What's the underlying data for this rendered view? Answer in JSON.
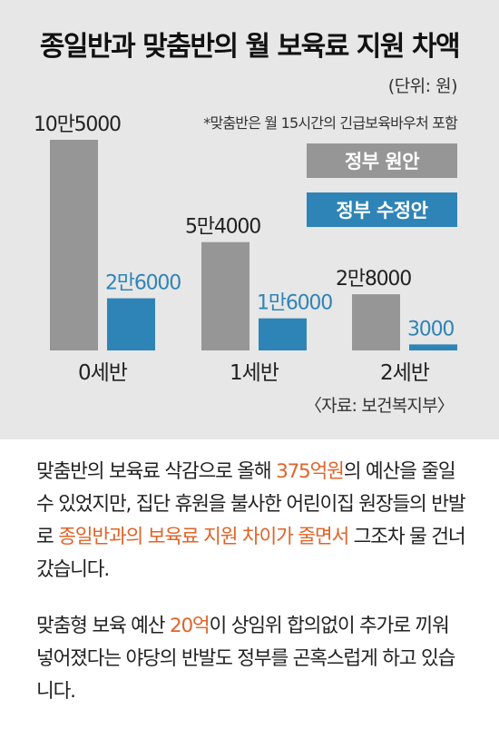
{
  "chart_data": {
    "type": "bar",
    "title": "종일반과 맞춤반의 월 보육료 지원 차액",
    "unit_label": "(단위: 원)",
    "note": "*맞춤반은 월 15시간의  긴급보육바우처 포함",
    "source": "〈자료: 보건복지부〉",
    "categories": [
      "0세반",
      "1세반",
      "2세반"
    ],
    "series": [
      {
        "name": "정부 원안",
        "color": "#969696",
        "label_color": "#222222",
        "values": [
          105000,
          54000,
          28000
        ],
        "labels": [
          "10만5000",
          "5만4000",
          "2만8000"
        ]
      },
      {
        "name": "정부 수정안",
        "color": "#2f84b7",
        "label_color": "#2f84b7",
        "values": [
          26000,
          16000,
          3000
        ],
        "labels": [
          "2만6000",
          "1만6000",
          "3000"
        ]
      }
    ],
    "ylim": [
      0,
      105000
    ],
    "grid": false,
    "legend_position": "top-right"
  },
  "paragraphs": {
    "p1": {
      "a": "맞춤반의 보육료 삭감으로 올해 ",
      "b": "375억원",
      "c": "의 예산을 줄일 수 있었지만, 집단 휴원을 불사한 어린이집 원장들의 반발로 ",
      "d": "종일반과의 보육료 지원 차이가 줄면서",
      "e": " 그조차 물 건너갔습니다."
    },
    "p2": {
      "a": "맞춤형 보육 예산 ",
      "b": "20억",
      "c": "이 상임위 합의없이 추가로 끼워 넣어졌다는 야당의 반발도 정부를 곤혹스럽게 하고 있습니다."
    }
  },
  "colors": {
    "panel_bg": "#e7e7e7",
    "highlight": "#e0642a",
    "gov": "#969696",
    "revised": "#2f84b7"
  }
}
